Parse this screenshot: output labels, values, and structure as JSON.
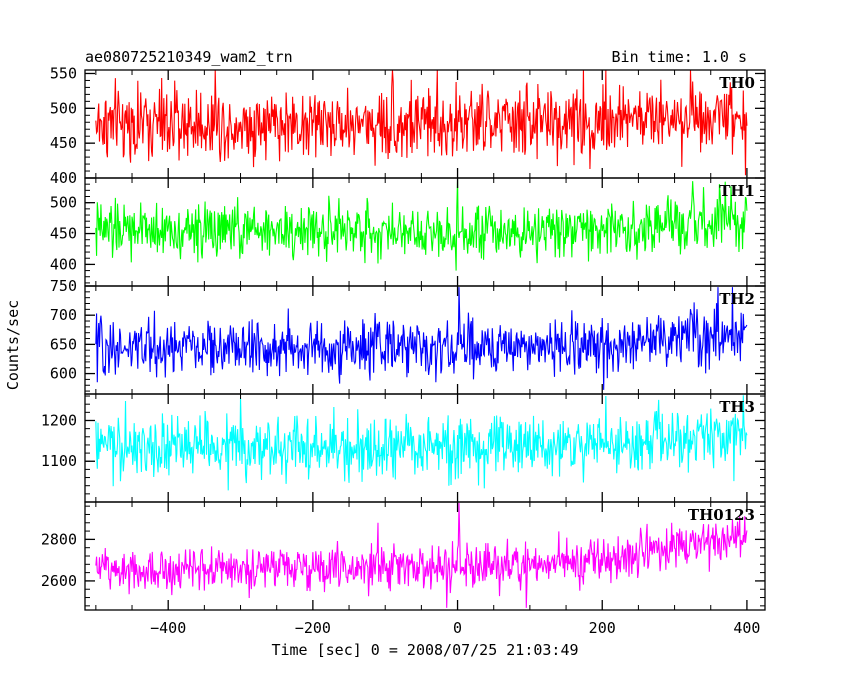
{
  "chart_data": {
    "type": "line",
    "title": "ae080725210349_wam2_trn",
    "subtitle": "Bin time: 1.0 s",
    "xlabel": "Time [sec] 0 = 2008/07/25 21:03:49",
    "ylabel": "Counts/sec",
    "xlim": [
      -515,
      425
    ],
    "x_ticks": [
      -400,
      -200,
      0,
      200,
      400
    ],
    "x_range": [
      -500,
      400
    ],
    "grid": false,
    "series": [
      {
        "name": "TH0",
        "color": "#ff0000",
        "ylim": [
          400,
          555
        ],
        "y_ticks": [
          400,
          450,
          500,
          550
        ],
        "mean": [
          [
            -500,
            478
          ],
          [
            -400,
            478
          ],
          [
            -200,
            478
          ],
          [
            0,
            478
          ],
          [
            200,
            482
          ],
          [
            300,
            488
          ],
          [
            400,
            496
          ]
        ],
        "noise_sd": 26,
        "spikes": [
          [
            -335,
            555
          ],
          [
            -90,
            555
          ],
          [
            -28,
            555
          ],
          [
            205,
            555
          ],
          [
            322,
            555
          ],
          [
            398,
            404
          ]
        ]
      },
      {
        "name": "TH1",
        "color": "#00ff00",
        "ylim": [
          365,
          540
        ],
        "y_ticks": [
          400,
          450,
          500
        ],
        "mean": [
          [
            -500,
            455
          ],
          [
            -200,
            455
          ],
          [
            0,
            455
          ],
          [
            200,
            457
          ],
          [
            300,
            462
          ],
          [
            400,
            468
          ]
        ],
        "noise_sd": 22,
        "spikes": [
          [
            0,
            538
          ],
          [
            -2,
            390
          ],
          [
            325,
            535
          ],
          [
            370,
            534
          ]
        ]
      },
      {
        "name": "TH2",
        "color": "#0000ff",
        "ylim": [
          565,
          750
        ],
        "y_ticks": [
          600,
          650,
          700,
          750
        ],
        "mean": [
          [
            -500,
            645
          ],
          [
            -200,
            643
          ],
          [
            0,
            645
          ],
          [
            200,
            648
          ],
          [
            300,
            662
          ],
          [
            400,
            672
          ]
        ],
        "noise_sd": 24,
        "spikes": [
          [
            2,
            748
          ],
          [
            -5,
            600
          ],
          [
            360,
            748
          ],
          [
            380,
            748
          ]
        ]
      },
      {
        "name": "TH3",
        "color": "#00ffff",
        "ylim": [
          1000,
          1265
        ],
        "y_ticks": [
          1100,
          1200
        ],
        "mean": [
          [
            -500,
            1135
          ],
          [
            -200,
            1130
          ],
          [
            0,
            1132
          ],
          [
            200,
            1140
          ],
          [
            300,
            1150
          ],
          [
            400,
            1168
          ]
        ],
        "noise_sd": 38,
        "spikes": [
          [
            -300,
            1255
          ],
          [
            205,
            1260
          ],
          [
            395,
            1262
          ]
        ]
      },
      {
        "name": "TH0123",
        "color": "#ff00ff",
        "ylim": [
          2460,
          2980
        ],
        "y_ticks": [
          2600,
          2800
        ],
        "mean": [
          [
            -500,
            2660
          ],
          [
            -200,
            2660
          ],
          [
            0,
            2665
          ],
          [
            200,
            2700
          ],
          [
            300,
            2760
          ],
          [
            400,
            2820
          ]
        ],
        "noise_sd": 52,
        "spikes": [
          [
            2,
            2975
          ],
          [
            -110,
            2880
          ],
          [
            -15,
            2470
          ],
          [
            95,
            2470
          ],
          [
            380,
            2895
          ]
        ]
      }
    ]
  }
}
